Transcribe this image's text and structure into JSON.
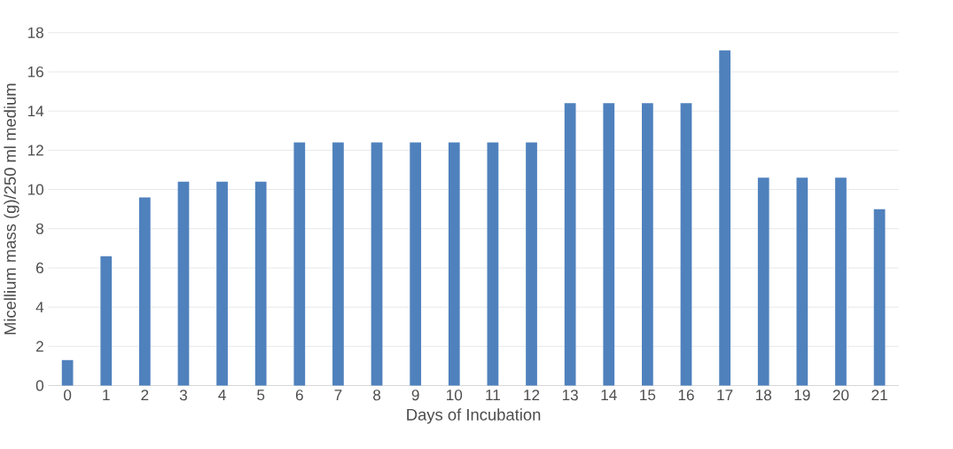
{
  "chart_data": {
    "type": "bar",
    "xlabel": "Days of Incubation",
    "ylabel": "Micellium mass (g)/250 ml medium",
    "categories": [
      "0",
      "1",
      "2",
      "3",
      "4",
      "5",
      "6",
      "7",
      "8",
      "9",
      "10",
      "11",
      "12",
      "13",
      "14",
      "15",
      "16",
      "17",
      "18",
      "19",
      "20",
      "21"
    ],
    "values": [
      1.3,
      6.6,
      9.6,
      10.4,
      10.4,
      10.4,
      12.4,
      12.4,
      12.4,
      12.4,
      12.4,
      12.4,
      12.4,
      14.4,
      14.4,
      14.4,
      14.4,
      17.1,
      10.6,
      10.6,
      10.6,
      9.0
    ],
    "color": "#4f81bd",
    "ylim": [
      0,
      18
    ],
    "yticks": [
      0,
      2,
      4,
      6,
      8,
      10,
      12,
      14,
      16,
      18
    ],
    "grid": "y"
  }
}
